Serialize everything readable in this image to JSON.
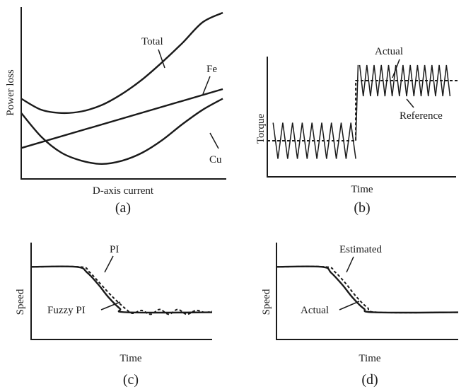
{
  "chart_data": [
    {
      "id": "a",
      "type": "line",
      "caption": "(a)",
      "xlabel": "D-axis current",
      "ylabel": "Power loss",
      "xlim": [
        0,
        10
      ],
      "ylim": [
        0,
        10
      ],
      "grid": false,
      "legend": "none",
      "series": [
        {
          "name": "Total",
          "x": [
            0,
            1,
            2,
            3,
            4,
            5,
            6,
            7,
            8,
            9,
            10
          ],
          "y": [
            4.6,
            3.9,
            3.7,
            3.8,
            4.2,
            4.9,
            5.8,
            6.9,
            8.1,
            9.4,
            10.0
          ]
        },
        {
          "name": "Fe",
          "x": [
            0,
            10
          ],
          "y": [
            1.5,
            5.2
          ]
        },
        {
          "name": "Cu",
          "x": [
            0,
            1,
            2,
            3,
            4,
            5,
            6,
            7,
            8,
            9,
            10
          ],
          "y": [
            3.7,
            2.2,
            1.2,
            0.7,
            0.5,
            0.7,
            1.2,
            2.0,
            3.0,
            3.9,
            4.6
          ]
        }
      ]
    },
    {
      "id": "b",
      "type": "line",
      "caption": "(b)",
      "xlabel": "Time",
      "ylabel": "Torque",
      "xlim": [
        0,
        10
      ],
      "ylim": [
        0,
        10
      ],
      "grid": false,
      "legend": "none",
      "step_time": 4.6,
      "series": [
        {
          "name": "Reference",
          "style": "dashed",
          "x": [
            0,
            4.6,
            4.6,
            10
          ],
          "y": [
            3.0,
            3.0,
            8.0,
            8.0
          ]
        },
        {
          "name": "Actual",
          "style": "solid",
          "ripple": true,
          "segments": [
            {
              "t_start": 0.3,
              "t_end": 4.6,
              "level": 3.0,
              "amplitude": 1.5,
              "cycles": 8.5
            },
            {
              "t_start": 4.8,
              "t_end": 9.5,
              "level": 8.0,
              "amplitude": 1.3,
              "cycles": 12.5
            }
          ]
        }
      ]
    },
    {
      "id": "c",
      "type": "line",
      "caption": "(c)",
      "xlabel": "Time",
      "ylabel": "Speed",
      "xlim": [
        0,
        10
      ],
      "ylim": [
        0,
        10
      ],
      "grid": false,
      "legend": "none",
      "series": [
        {
          "name": "PI",
          "style": "dashed",
          "x": [
            0,
            2.7,
            3.2,
            3.8,
            4.5,
            5.2,
            5.6,
            6.1,
            6.6,
            7.1,
            7.6,
            8.1,
            8.6,
            9.1,
            9.6,
            10.0
          ],
          "y": [
            7.5,
            7.5,
            7.0,
            5.8,
            4.4,
            3.2,
            2.7,
            3.0,
            2.6,
            3.1,
            2.6,
            3.1,
            2.6,
            3.0,
            2.8,
            2.9
          ]
        },
        {
          "name": "Fuzzy PI",
          "style": "solid",
          "x": [
            0,
            2.5,
            3.1,
            3.7,
            4.3,
            4.9,
            5.3,
            10.0
          ],
          "y": [
            7.5,
            7.5,
            6.9,
            5.7,
            4.3,
            3.2,
            2.8,
            2.8
          ]
        }
      ]
    },
    {
      "id": "d",
      "type": "line",
      "caption": "(d)",
      "xlabel": "Time",
      "ylabel": "Speed",
      "xlim": [
        0,
        10
      ],
      "ylim": [
        0,
        10
      ],
      "grid": false,
      "legend": "none",
      "series": [
        {
          "name": "Estimated",
          "style": "dashed",
          "x": [
            0,
            2.7,
            3.2,
            3.8,
            4.4,
            5.0,
            5.6,
            10.0
          ],
          "y": [
            7.5,
            7.5,
            7.0,
            5.8,
            4.4,
            3.3,
            2.8,
            2.8
          ]
        },
        {
          "name": "Actual",
          "style": "solid",
          "x": [
            0,
            2.5,
            3.0,
            3.6,
            4.2,
            4.8,
            5.4,
            10.0
          ],
          "y": [
            7.5,
            7.5,
            6.9,
            5.7,
            4.3,
            3.2,
            2.8,
            2.8
          ]
        }
      ]
    }
  ]
}
